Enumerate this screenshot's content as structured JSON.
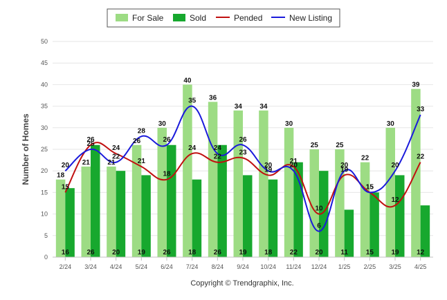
{
  "chart_data": {
    "type": "bar",
    "categories": [
      "2/24",
      "3/24",
      "4/24",
      "5/24",
      "6/24",
      "7/24",
      "8/24",
      "9/24",
      "10/24",
      "11/24",
      "12/24",
      "1/25",
      "2/25",
      "3/25",
      "4/25"
    ],
    "series": [
      {
        "name": "For Sale",
        "kind": "bar",
        "color": "#9ddc84",
        "values": [
          18,
          21,
          21,
          26,
          30,
          40,
          36,
          34,
          34,
          30,
          25,
          25,
          22,
          30,
          39
        ]
      },
      {
        "name": "Sold",
        "kind": "bar",
        "color": "#17a82e",
        "values": [
          16,
          26,
          20,
          19,
          26,
          18,
          26,
          19,
          18,
          22,
          20,
          11,
          15,
          19,
          12
        ]
      },
      {
        "name": "Pended",
        "kind": "line",
        "color": "#c01010",
        "values": [
          15,
          26,
          24,
          21,
          18,
          24,
          22,
          23,
          19,
          21,
          10,
          19,
          15,
          12,
          22
        ]
      },
      {
        "name": "New Listing",
        "kind": "line",
        "color": "#1a1adb",
        "values": [
          20,
          25,
          22,
          28,
          26,
          35,
          24,
          26,
          20,
          20,
          6,
          20,
          15,
          20,
          33
        ]
      }
    ],
    "ylabel": "Number of Homes",
    "ylim": [
      0,
      50
    ],
    "yticks": [
      0,
      5,
      10,
      15,
      20,
      25,
      30,
      35,
      40,
      45,
      50
    ],
    "grid": true,
    "legend": "top-center"
  },
  "credit": "Copyright © Trendgraphix, Inc."
}
